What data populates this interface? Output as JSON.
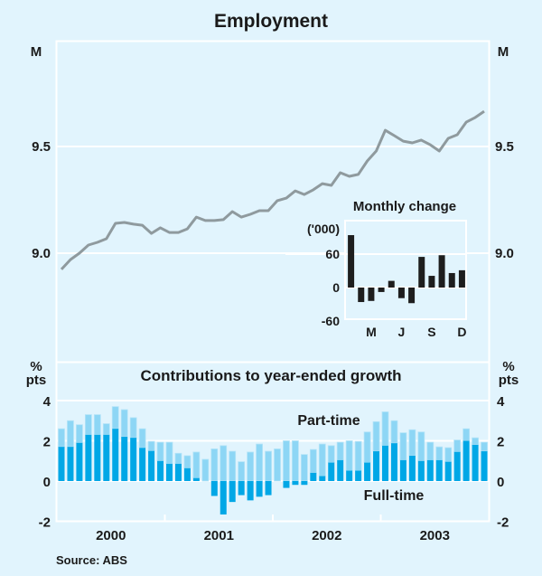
{
  "chart_data": [
    {
      "type": "line",
      "title": "Employment",
      "ylabel": "M",
      "ylim": [
        8.85,
        9.85
      ],
      "yticks": [
        "9.0",
        "9.5"
      ],
      "ytick_values": [
        9.0,
        9.5
      ],
      "grid": true,
      "x_start": "Jan 2000",
      "frequency": "monthly",
      "series": [
        {
          "name": "Employment",
          "color": "#8f9a9e",
          "values": [
            8.924,
            8.97,
            9.0,
            9.038,
            9.051,
            9.068,
            9.14,
            9.144,
            9.136,
            9.131,
            9.093,
            9.119,
            9.097,
            9.097,
            9.114,
            9.169,
            9.153,
            9.153,
            9.157,
            9.195,
            9.169,
            9.182,
            9.199,
            9.199,
            9.246,
            9.258,
            9.292,
            9.275,
            9.297,
            9.326,
            9.318,
            9.377,
            9.36,
            9.369,
            9.432,
            9.479,
            9.576,
            9.551,
            9.525,
            9.517,
            9.53,
            9.508,
            9.479,
            9.538,
            9.555,
            9.614,
            9.636,
            9.665
          ]
        }
      ]
    },
    {
      "type": "bar",
      "title": "Monthly change",
      "ylabel": "('000)",
      "ylim": [
        -60,
        120
      ],
      "yticks": [
        "60",
        "0",
        "-60"
      ],
      "ytick_values": [
        60,
        0,
        -60
      ],
      "categories": [
        "J",
        "F",
        "M",
        "A",
        "M",
        "J",
        "J",
        "A",
        "S",
        "O",
        "N",
        "D"
      ],
      "xtick_labels": [
        "M",
        "J",
        "S",
        "D"
      ],
      "xtick_indices": [
        2,
        5,
        8,
        11
      ],
      "values": [
        94,
        -26,
        -24,
        -8,
        12,
        -19,
        -28,
        55,
        21,
        58,
        26,
        31
      ],
      "color": "#1e1e1e",
      "period": "2003"
    },
    {
      "type": "bar",
      "stacked": true,
      "title": "Contributions to year-ended growth",
      "ylabel": "% pts",
      "ylim": [
        -2,
        4
      ],
      "yticks": [
        "4",
        "2",
        "0",
        "-2"
      ],
      "ytick_values": [
        4,
        2,
        0,
        -2
      ],
      "grid": true,
      "x_start": "Jan 2000",
      "frequency": "monthly",
      "xlabels": [
        "2000",
        "2001",
        "2002",
        "2003"
      ],
      "annotations": [
        "Part-time",
        "Full-time"
      ],
      "series": [
        {
          "name": "Full-time",
          "color": "#00a7e6",
          "values": [
            1.7,
            1.7,
            1.9,
            2.3,
            2.3,
            2.3,
            2.6,
            2.2,
            2.15,
            1.65,
            1.5,
            1.0,
            0.86,
            0.86,
            0.64,
            0.15,
            0.0,
            -0.74,
            -1.66,
            -1.04,
            -0.7,
            -0.96,
            -0.78,
            -0.7,
            0.0,
            -0.34,
            -0.19,
            -0.19,
            0.41,
            0.25,
            0.92,
            1.04,
            0.52,
            0.52,
            0.92,
            1.48,
            1.76,
            1.88,
            1.04,
            1.26,
            1.0,
            1.04,
            1.04,
            0.96,
            1.45,
            2.0,
            1.8,
            1.48
          ]
        },
        {
          "name": "Part-time",
          "color": "#8dd6f5",
          "values": [
            0.9,
            1.3,
            0.9,
            1.0,
            1.0,
            0.55,
            1.1,
            1.35,
            1.0,
            0.95,
            0.47,
            0.93,
            1.07,
            0.52,
            0.62,
            1.29,
            1.08,
            1.6,
            1.76,
            1.48,
            0.96,
            1.44,
            1.84,
            1.48,
            1.6,
            2.0,
            2.0,
            1.32,
            1.16,
            1.59,
            0.84,
            0.89,
            1.48,
            1.45,
            1.52,
            1.47,
            1.68,
            1.12,
            1.36,
            1.29,
            1.44,
            0.89,
            0.66,
            0.7,
            0.59,
            0.6,
            0.35,
            0.45
          ]
        }
      ]
    }
  ],
  "source": "Source: ABS"
}
